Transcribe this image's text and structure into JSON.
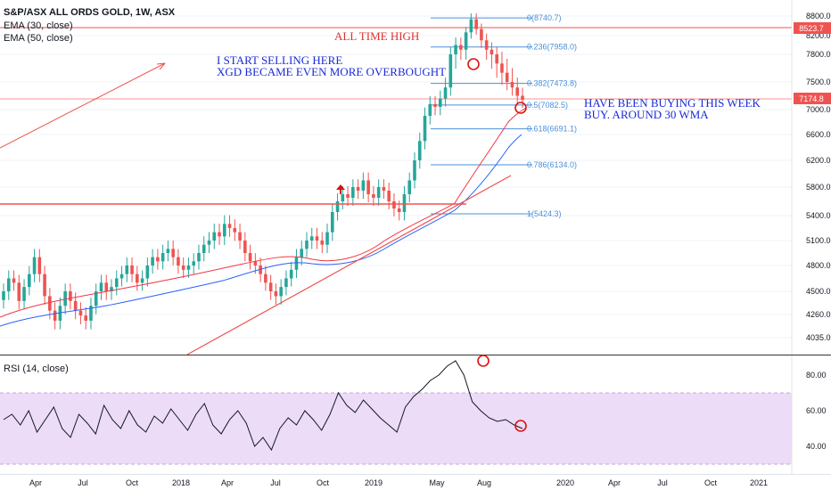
{
  "legend": {
    "symbol": "S&P/ASX ALL ORDS GOLD, 1W, ASX",
    "ema30": "EMA (30, close)",
    "ema50": "EMA (50, close)",
    "rsi": "RSI (14, close)"
  },
  "annotations": {
    "ath": "ALL TIME HIGH",
    "sell_1": "I START SELLING HERE",
    "sell_2": "XGD BECAME EVEN MORE OVERBOUGHT",
    "buy_1": "HAVE BEEN BUYING THIS WEEK",
    "buy_2": "BUY. AROUND 30 WMA"
  },
  "colors": {
    "up": "#26a69a",
    "down": "#ef5350",
    "ema30": "#f23645",
    "ema50": "#2962ff",
    "fib": "#4a90d9",
    "annotation_red": "#e03030",
    "rsi_band": "#ecdcf7"
  },
  "chart_data": {
    "type": "candlestick",
    "title": "S&P/ASX ALL ORDS GOLD, 1W, ASX",
    "price_axis_ticks": [
      8800.0,
      8200.0,
      7800.0,
      7500.0,
      7000.0,
      6600.0,
      6200.0,
      5800.0,
      5400.0,
      5100.0,
      4800.0,
      4500.0,
      4260.0,
      4035.0
    ],
    "time_axis_labels": [
      "Apr",
      "Jul",
      "Oct",
      "2018",
      "Apr",
      "Jul",
      "Oct",
      "2019",
      "May",
      "Aug",
      "2020",
      "Apr",
      "Jul",
      "Oct",
      "2021"
    ],
    "price_labels": {
      "high_line": "8523.7",
      "last": "7174.8"
    },
    "ohlc_closes_approx": [
      4500,
      4650,
      4600,
      4400,
      4550,
      4700,
      4900,
      4700,
      4450,
      4300,
      4200,
      4350,
      4500,
      4400,
      4300,
      4250,
      4200,
      4350,
      4500,
      4600,
      4500,
      4550,
      4650,
      4700,
      4800,
      4700,
      4600,
      4650,
      4800,
      4900,
      4850,
      4950,
      5000,
      4900,
      4800,
      4750,
      4800,
      4850,
      4950,
      5050,
      5100,
      5200,
      5150,
      5300,
      5250,
      5200,
      5100,
      4950,
      4850,
      4800,
      4700,
      4600,
      4500,
      4450,
      4550,
      4650,
      4750,
      4900,
      5000,
      5100,
      5150,
      5100,
      5050,
      5200,
      5450,
      5600,
      5700,
      5650,
      5800,
      5750,
      5900,
      5700,
      5650,
      5800,
      5750,
      5600,
      5500,
      5450,
      5700,
      5900,
      6200,
      6500,
      6900,
      7100,
      7050,
      7200,
      7400,
      7800,
      8000,
      7900,
      8300,
      8700,
      8400,
      8100,
      7900,
      7800,
      7700,
      7600,
      7500,
      7400,
      7250,
      7174.8
    ],
    "fibonacci": [
      {
        "label": "0(8740.7)",
        "value": 8740.7
      },
      {
        "label": "0.236(7958.0)",
        "value": 7958.0
      },
      {
        "label": "0.382(7473.8)",
        "value": 7473.8
      },
      {
        "label": "0.5(7082.5)",
        "value": 7082.5
      },
      {
        "label": "0.618(6691.1)",
        "value": 6691.1
      },
      {
        "label": "0.786(6134.0)",
        "value": 6134.0
      },
      {
        "label": "1(5424.3)",
        "value": 5424.3
      }
    ],
    "ema30": [
      4200,
      4500,
      4750,
      5000,
      5300,
      5600,
      6500,
      7000
    ],
    "ema50": [
      4150,
      4350,
      4650,
      4900,
      5200,
      5450,
      6000,
      6550
    ],
    "rsi": {
      "ticks": [
        80.0,
        60.0,
        40.0
      ],
      "band": [
        30,
        70
      ],
      "values": [
        55,
        58,
        52,
        60,
        48,
        55,
        62,
        50,
        45,
        58,
        53,
        47,
        63,
        55,
        50,
        60,
        52,
        48,
        57,
        53,
        61,
        55,
        49,
        58,
        64,
        52,
        47,
        55,
        60,
        53,
        40,
        45,
        38,
        50,
        56,
        52,
        60,
        55,
        49,
        58,
        70,
        63,
        59,
        66,
        61,
        56,
        52,
        48,
        62,
        68,
        72,
        77,
        80,
        85,
        88,
        80,
        65,
        60,
        56,
        54,
        55,
        52,
        50
      ]
    }
  }
}
